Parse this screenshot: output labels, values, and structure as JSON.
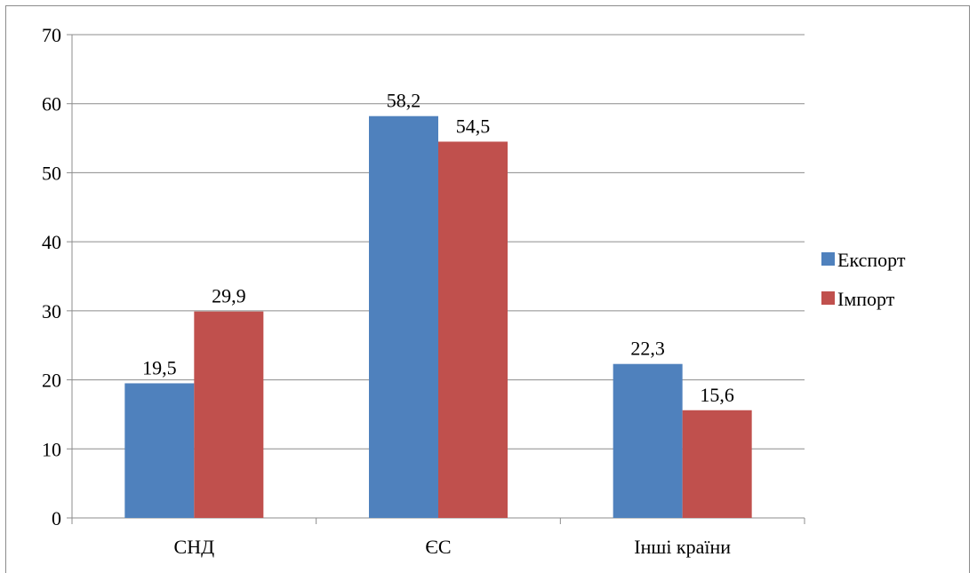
{
  "chart_data": {
    "type": "bar",
    "categories": [
      "СНД",
      "ЄС",
      "Інші країни"
    ],
    "series": [
      {
        "name": "Експорт",
        "values": [
          19.5,
          58.2,
          22.3
        ],
        "labels": [
          "19,5",
          "58,2",
          "22,3"
        ],
        "color": "#4f81bd"
      },
      {
        "name": "Імпорт",
        "values": [
          29.9,
          54.5,
          15.6
        ],
        "labels": [
          "29,9",
          "54,5",
          "15,6"
        ],
        "color": "#c0504d"
      }
    ],
    "ylim": [
      0,
      70
    ],
    "yticks": [
      0,
      10,
      20,
      30,
      40,
      50,
      60,
      70
    ],
    "grid": true,
    "legend_position": "right"
  }
}
